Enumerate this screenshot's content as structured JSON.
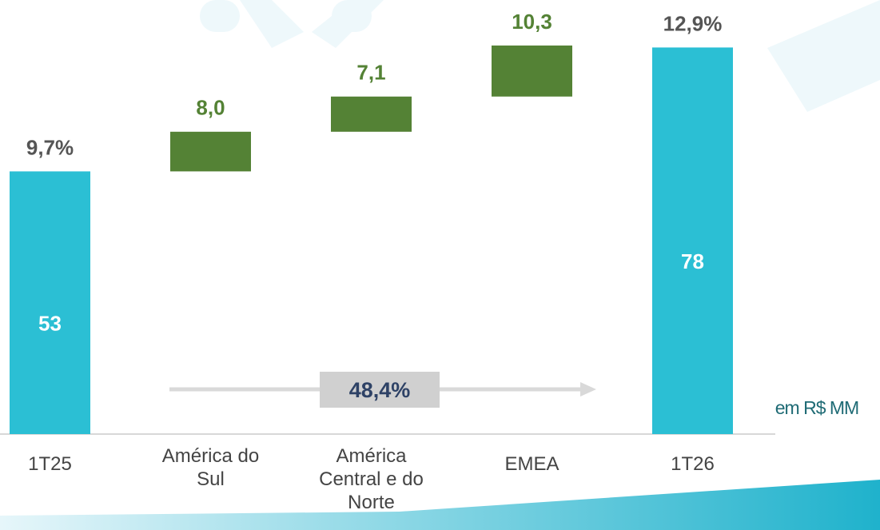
{
  "chart_data": {
    "type": "waterfall",
    "categories": [
      "1T25",
      "América do Sul",
      "América Central e do Norte",
      "EMEA",
      "1T26"
    ],
    "values": [
      53,
      8.0,
      7.1,
      10.3,
      78
    ],
    "value_labels": [
      "53",
      "8,0",
      "7,1",
      "10,3",
      "78"
    ],
    "kinds": [
      "total",
      "delta",
      "delta",
      "delta",
      "total"
    ],
    "margin_values": [
      9.7,
      null,
      null,
      null,
      12.9
    ],
    "margin_labels": [
      "9,7%",
      null,
      null,
      null,
      "12,9%"
    ],
    "growth": {
      "value": 48.4,
      "label": "48,4%"
    },
    "unit_label": "em R$ MM",
    "total_color": "#2bbfd4",
    "delta_color": "#548235",
    "ylim": [
      0,
      80
    ]
  }
}
